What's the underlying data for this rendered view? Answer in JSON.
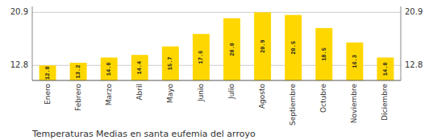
{
  "chart_data": {
    "type": "bar",
    "title": "Temperaturas Medias en santa eufemia del arroyo",
    "categories": [
      "Enero",
      "Febrero",
      "Marzo",
      "Abril",
      "Mayo",
      "Junio",
      "Julio",
      "Agosto",
      "Septiembre",
      "Octubre",
      "Noviembre",
      "Diciembre"
    ],
    "values": [
      12.8,
      13.2,
      14.0,
      14.4,
      15.7,
      17.6,
      20.0,
      20.9,
      20.5,
      18.5,
      16.3,
      14.0
    ],
    "value_labels": [
      "12.8",
      "13.2",
      "14.0",
      "14.4",
      "15.7",
      "17.6",
      "20.0",
      "20.9",
      "20.5",
      "18.5",
      "16.3",
      "14.0"
    ],
    "color": "#FFD700",
    "ylim": [
      10.5,
      21.8
    ],
    "yticks": [
      12.8,
      20.9
    ],
    "grid": true,
    "data_labels": true
  }
}
